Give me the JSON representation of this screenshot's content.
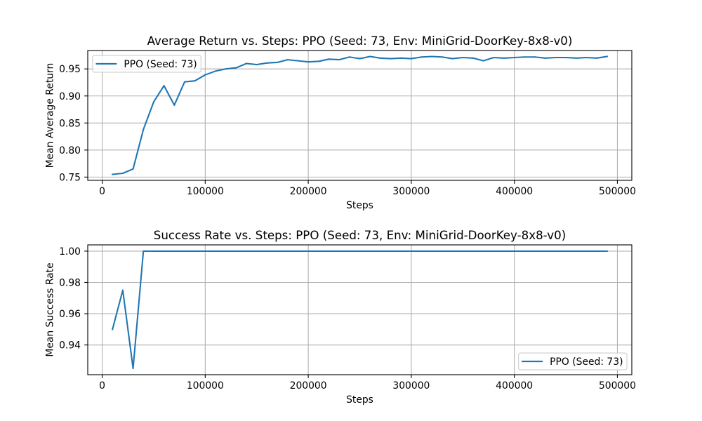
{
  "chart_data": [
    {
      "type": "line",
      "title": "Average Return vs. Steps: PPO (Seed: 73, Env: MiniGrid-DoorKey-8x8-v0)",
      "xlabel": "Steps",
      "ylabel": "Mean Average Return",
      "xlim": [
        -14000,
        514000
      ],
      "ylim": [
        0.744,
        0.984
      ],
      "xticks": [
        "0",
        "100000",
        "200000",
        "300000",
        "400000",
        "500000"
      ],
      "yticks": [
        "0.75",
        "0.80",
        "0.85",
        "0.90",
        "0.95"
      ],
      "grid": true,
      "legend": "upper left",
      "x": [
        10000,
        20000,
        30000,
        40000,
        50000,
        60000,
        70000,
        80000,
        90000,
        100000,
        110000,
        120000,
        130000,
        140000,
        150000,
        160000,
        170000,
        180000,
        190000,
        200000,
        210000,
        220000,
        230000,
        240000,
        250000,
        260000,
        270000,
        280000,
        290000,
        300000,
        310000,
        320000,
        330000,
        340000,
        350000,
        360000,
        370000,
        380000,
        390000,
        400000,
        410000,
        420000,
        430000,
        440000,
        450000,
        460000,
        470000,
        480000,
        490000
      ],
      "series": [
        {
          "name": "PPO (Seed: 73)",
          "color": "#1f77b4",
          "values": [
            0.755,
            0.757,
            0.765,
            0.838,
            0.889,
            0.919,
            0.883,
            0.926,
            0.928,
            0.939,
            0.946,
            0.95,
            0.952,
            0.96,
            0.958,
            0.961,
            0.962,
            0.967,
            0.965,
            0.963,
            0.964,
            0.968,
            0.967,
            0.972,
            0.969,
            0.973,
            0.97,
            0.969,
            0.97,
            0.969,
            0.972,
            0.973,
            0.972,
            0.969,
            0.971,
            0.97,
            0.965,
            0.971,
            0.97,
            0.971,
            0.972,
            0.972,
            0.97,
            0.971,
            0.971,
            0.97,
            0.971,
            0.97,
            0.973
          ]
        }
      ]
    },
    {
      "type": "line",
      "title": "Success Rate vs. Steps: PPO (Seed: 73, Env: MiniGrid-DoorKey-8x8-v0)",
      "xlabel": "Steps",
      "ylabel": "Mean Success Rate",
      "xlim": [
        -14000,
        514000
      ],
      "ylim": [
        0.921,
        1.004
      ],
      "xticks": [
        "0",
        "100000",
        "200000",
        "300000",
        "400000",
        "500000"
      ],
      "yticks": [
        "0.94",
        "0.96",
        "0.98",
        "1.00"
      ],
      "grid": true,
      "legend": "lower right",
      "x": [
        10000,
        20000,
        30000,
        40000,
        50000,
        60000,
        70000,
        80000,
        90000,
        100000,
        110000,
        120000,
        130000,
        140000,
        150000,
        160000,
        170000,
        180000,
        190000,
        200000,
        210000,
        220000,
        230000,
        240000,
        250000,
        260000,
        270000,
        280000,
        290000,
        300000,
        310000,
        320000,
        330000,
        340000,
        350000,
        360000,
        370000,
        380000,
        390000,
        400000,
        410000,
        420000,
        430000,
        440000,
        450000,
        460000,
        470000,
        480000,
        490000
      ],
      "series": [
        {
          "name": "PPO (Seed: 73)",
          "color": "#1f77b4",
          "values": [
            0.95,
            0.975,
            0.925,
            1.0,
            1.0,
            1.0,
            1.0,
            1.0,
            1.0,
            1.0,
            1.0,
            1.0,
            1.0,
            1.0,
            1.0,
            1.0,
            1.0,
            1.0,
            1.0,
            1.0,
            1.0,
            1.0,
            1.0,
            1.0,
            1.0,
            1.0,
            1.0,
            1.0,
            1.0,
            1.0,
            1.0,
            1.0,
            1.0,
            1.0,
            1.0,
            1.0,
            1.0,
            1.0,
            1.0,
            1.0,
            1.0,
            1.0,
            1.0,
            1.0,
            1.0,
            1.0,
            1.0,
            1.0,
            1.0
          ]
        }
      ]
    }
  ]
}
